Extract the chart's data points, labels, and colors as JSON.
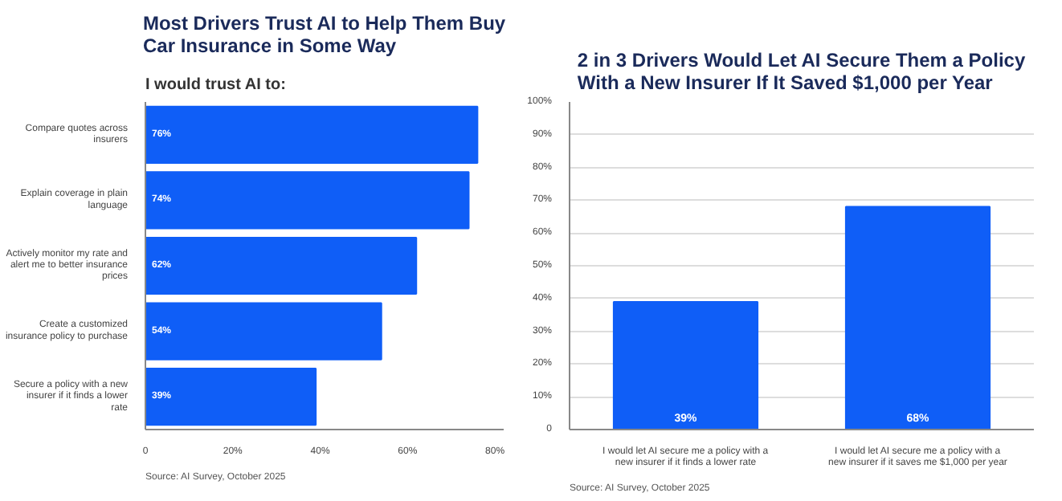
{
  "chart_data": [
    {
      "type": "bar",
      "orientation": "horizontal",
      "title": "Most Drivers Trust AI to Help Them Buy Car Insurance in Some Way",
      "subtitle": "I would trust AI to:",
      "categories": [
        "Compare quotes across insurers",
        "Explain coverage in plain language",
        "Actively monitor my rate and alert me to better insurance prices",
        "Create a customized insurance policy to purchase",
        "Secure a policy with a new insurer if it finds a lower rate"
      ],
      "values": [
        76,
        74,
        62,
        54,
        39
      ],
      "color": "#0f5ef7",
      "value_labels": [
        "76%",
        "74%",
        "62%",
        "54%",
        "39%"
      ],
      "xlim": [
        0,
        82
      ],
      "xticks": [
        0,
        {
          "value": 20,
          "label": "20%"
        },
        {
          "value": 40,
          "label": "40%"
        },
        {
          "value": 60,
          "label": "60%"
        },
        {
          "value": 80,
          "label": "80%"
        }
      ],
      "grid": false,
      "annotations": [
        "Source: AI Survey, October 2025"
      ]
    },
    {
      "type": "bar",
      "title": "2 in 3 Drivers Would Let AI Secure Them a Policy With a New Insurer If It Saved $1,000 per Year",
      "categories": [
        "I would let AI secure me a policy with a new insurer if it finds a lower rate",
        "I would let AI secure me a policy with a new insurer if it saves me $1,000 per year"
      ],
      "values": [
        39,
        68
      ],
      "color": "#0f5ef7",
      "value_labels": [
        "39%",
        "68%"
      ],
      "ylim": [
        0,
        100
      ],
      "yticks": [
        0,
        {
          "value": 10,
          "label": "10%"
        },
        {
          "value": 20,
          "label": "20%"
        },
        {
          "value": 30,
          "label": "30%"
        },
        {
          "value": 40,
          "label": "40%"
        },
        {
          "value": 50,
          "label": "50%"
        },
        {
          "value": 60,
          "label": "60%"
        },
        {
          "value": 70,
          "label": "70%"
        },
        {
          "value": 80,
          "label": "80%"
        },
        {
          "value": 90,
          "label": "90%"
        },
        {
          "value": 100,
          "label": "100%"
        }
      ],
      "grid": "y",
      "annotations": [
        "Source: AI Survey, October 2025"
      ]
    }
  ]
}
